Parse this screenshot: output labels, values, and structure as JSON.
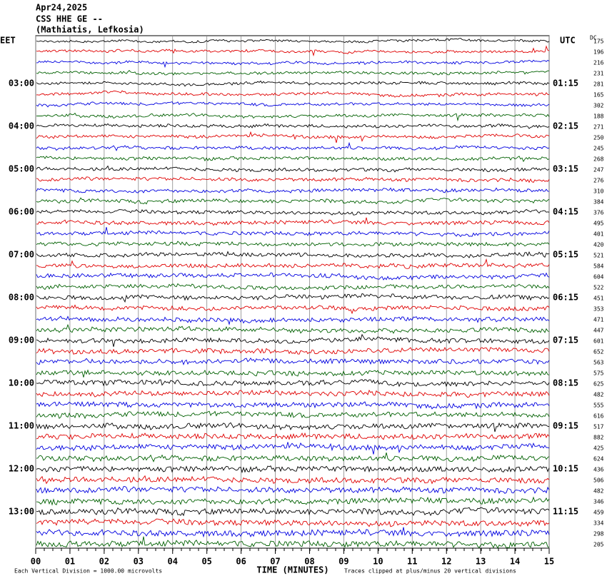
{
  "chart_data": {
    "type": "helicorder",
    "title": [
      "Apr24,2025",
      "CSS HHE GE --",
      "(Mathiatis, Lefkosia)"
    ],
    "left_label": "EET",
    "left_times": [
      "03:00",
      "04:00",
      "05:00",
      "06:00",
      "07:00",
      "08:00",
      "09:00",
      "10:00",
      "11:00",
      "12:00",
      "13:00"
    ],
    "right_label": "UTC",
    "right_times": [
      "01:15",
      "02:15",
      "03:15",
      "04:15",
      "05:15",
      "06:15",
      "07:15",
      "08:15",
      "09:15",
      "10:15",
      "11:15"
    ],
    "dc_label": "DC",
    "dc_values": [
      175,
      196,
      216,
      231,
      281,
      165,
      302,
      188,
      271,
      250,
      245,
      268,
      247,
      276,
      310,
      384,
      376,
      495,
      401,
      420,
      521,
      584,
      604,
      522,
      451,
      353,
      471,
      447,
      601,
      652,
      563,
      575,
      625,
      482,
      555,
      616,
      517,
      882,
      425,
      624,
      436,
      506,
      482,
      346,
      459,
      334,
      298,
      205
    ],
    "trace_colors": [
      "#000000",
      "#e00000",
      "#0000e0",
      "#006000"
    ],
    "xlabel": "TIME (MINUTES)",
    "xlim": [
      0,
      15
    ],
    "xticks": [
      {
        "value": 0,
        "label": "00"
      },
      {
        "value": 1,
        "label": "01"
      },
      {
        "value": 2,
        "label": "02"
      },
      {
        "value": 3,
        "label": "03"
      },
      {
        "value": 4,
        "label": "04"
      },
      {
        "value": 5,
        "label": "05"
      },
      {
        "value": 6,
        "label": "06"
      },
      {
        "value": 7,
        "label": "07"
      },
      {
        "value": 8,
        "label": "08"
      },
      {
        "value": 9,
        "label": "09"
      },
      {
        "value": 10,
        "label": "10"
      },
      {
        "value": 11,
        "label": "11"
      },
      {
        "value": 12,
        "label": "12"
      },
      {
        "value": 13,
        "label": "13"
      },
      {
        "value": 14,
        "label": "14"
      },
      {
        "value": 15,
        "label": "15"
      }
    ],
    "footer_left": "Each Vertical Division = 1000.00 microvolts",
    "footer_right": "Traces clipped at plus/minus 20 vertical divisions"
  }
}
